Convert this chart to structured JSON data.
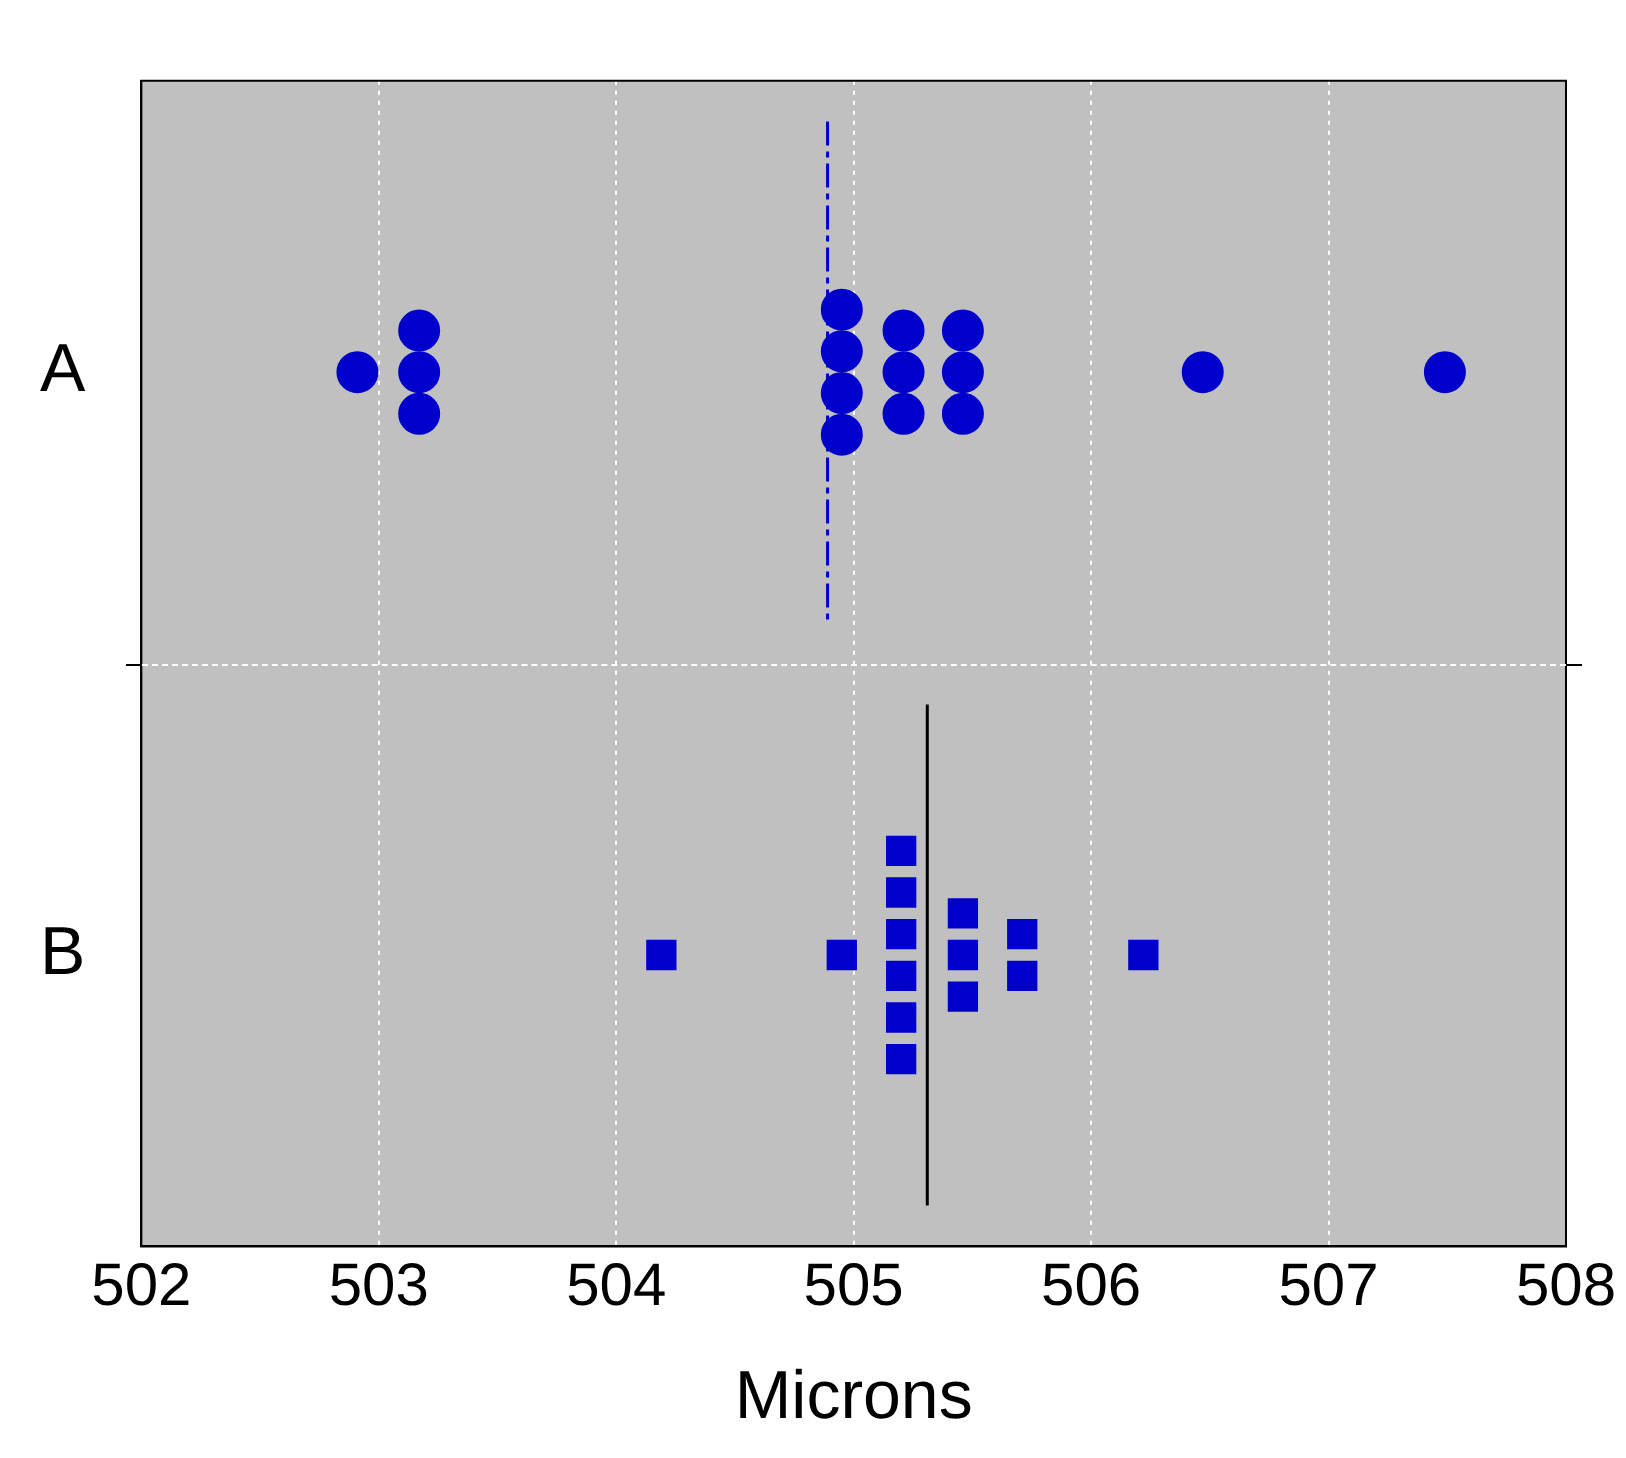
{
  "chart_data": {
    "type": "scatter",
    "orientation": "horizontal",
    "xlabel": "Microns",
    "categories": [
      "A",
      "B"
    ],
    "xlim": [
      502,
      508
    ],
    "xticks": [
      502,
      503,
      504,
      505,
      506,
      507,
      508
    ],
    "grid": true,
    "series": [
      {
        "marker": "circle",
        "color": "#0000cc",
        "x": [
          "A",
          "A",
          "A",
          "A",
          "A",
          "A",
          "A",
          "A",
          "A",
          "A",
          "A",
          "A",
          "A",
          "A",
          "A",
          "A"
        ],
        "values": [
          502.91,
          503.17,
          503.17,
          503.17,
          504.95,
          504.95,
          504.95,
          504.95,
          505.21,
          505.21,
          505.21,
          505.46,
          505.46,
          505.46,
          506.47,
          507.49
        ]
      },
      {
        "marker": "square",
        "color": "#0000cc",
        "x": [
          "B",
          "B",
          "B",
          "B",
          "B",
          "B",
          "B",
          "B",
          "B",
          "B",
          "B",
          "B",
          "B",
          "B"
        ],
        "values": [
          504.19,
          504.95,
          505.2,
          505.2,
          505.2,
          505.2,
          505.2,
          505.2,
          505.46,
          505.46,
          505.46,
          505.71,
          505.71,
          506.22
        ]
      }
    ],
    "ref_lines": [
      {
        "axis": "x",
        "value": 504.89,
        "color": "#0000cc",
        "line_style": "dashed"
      },
      {
        "axis": "x",
        "value": 505.31,
        "color": "#000000",
        "line_style": "solid"
      }
    ]
  }
}
